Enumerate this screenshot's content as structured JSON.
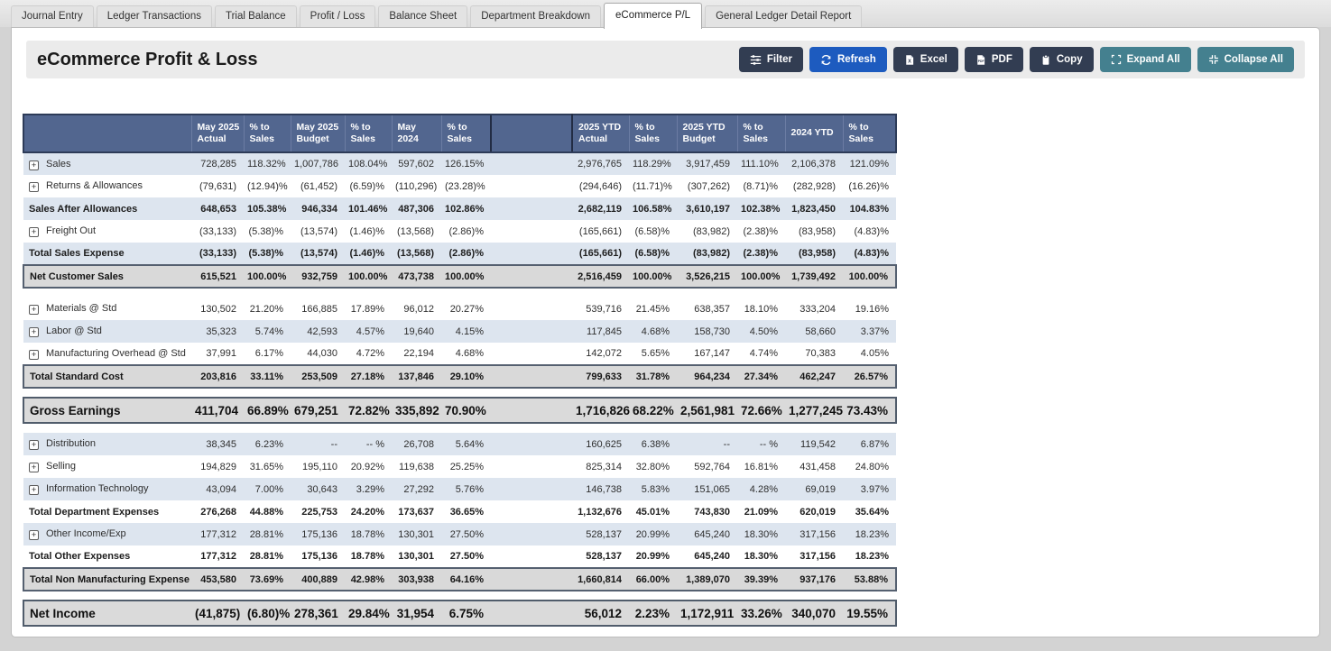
{
  "tabs": [
    {
      "label": "Journal Entry",
      "active": false
    },
    {
      "label": "Ledger Transactions",
      "active": false
    },
    {
      "label": "Trial Balance",
      "active": false
    },
    {
      "label": "Profit / Loss",
      "active": false
    },
    {
      "label": "Balance Sheet",
      "active": false
    },
    {
      "label": "Department Breakdown",
      "active": false
    },
    {
      "label": "eCommerce P/L",
      "active": true
    },
    {
      "label": "General Ledger Detail Report",
      "active": false
    }
  ],
  "header": {
    "title": "eCommerce Profit & Loss"
  },
  "toolbar": {
    "buttons": [
      {
        "label": "Filter",
        "icon": "filter-sliders-icon",
        "color": "#323d52"
      },
      {
        "label": "Refresh",
        "icon": "refresh-icon",
        "color": "#1d5bbf"
      },
      {
        "label": "Excel",
        "icon": "excel-file-icon",
        "color": "#323d52"
      },
      {
        "label": "PDF",
        "icon": "pdf-file-icon",
        "color": "#323d52"
      },
      {
        "label": "Copy",
        "icon": "copy-clipboard-icon",
        "color": "#323d52"
      },
      {
        "label": "Expand All",
        "icon": "expand-icon",
        "color": "#44808f"
      },
      {
        "label": "Collapse All",
        "icon": "collapse-icon",
        "color": "#44808f"
      }
    ]
  },
  "colors": {
    "table_header_bg": "#52668f",
    "stripe_blue": "#dde5ef",
    "total_row_bg": "#d9d9d9",
    "primary_button": "#1d5bbf",
    "dark_button": "#323d52",
    "teal_button": "#44808f"
  },
  "table": {
    "columns": [
      "",
      "May 2025 Actual",
      "% to Sales",
      "May 2025 Budget",
      "% to Sales",
      "May 2024",
      "% to Sales",
      "",
      "2025 YTD Actual",
      "% to Sales",
      "2025 YTD Budget",
      "% to Sales",
      "2024 YTD",
      "% to Sales"
    ],
    "rows": [
      {
        "label": "Sales",
        "icon": true,
        "stripe": "blue",
        "kind": "normal",
        "gap_before": false,
        "cells": [
          "728,285",
          "118.32%",
          "1,007,786",
          "108.04%",
          "597,602",
          "126.15%",
          "2,976,765",
          "118.29%",
          "3,917,459",
          "111.10%",
          "2,106,378",
          "121.09%"
        ]
      },
      {
        "label": "Returns & Allowances",
        "icon": true,
        "stripe": "white",
        "kind": "normal",
        "gap_before": false,
        "cells": [
          "(79,631)",
          "(12.94)%",
          "(61,452)",
          "(6.59)%",
          "(110,296)",
          "(23.28)%",
          "(294,646)",
          "(11.71)%",
          "(307,262)",
          "(8.71)%",
          "(282,928)",
          "(16.26)%"
        ]
      },
      {
        "label": "Sales After Allowances",
        "icon": false,
        "stripe": "blue",
        "kind": "bold",
        "gap_before": false,
        "cells": [
          "648,653",
          "105.38%",
          "946,334",
          "101.46%",
          "487,306",
          "102.86%",
          "2,682,119",
          "106.58%",
          "3,610,197",
          "102.38%",
          "1,823,450",
          "104.83%"
        ]
      },
      {
        "label": "Freight Out",
        "icon": true,
        "stripe": "white",
        "kind": "normal",
        "gap_before": false,
        "cells": [
          "(33,133)",
          "(5.38)%",
          "(13,574)",
          "(1.46)%",
          "(13,568)",
          "(2.86)%",
          "(165,661)",
          "(6.58)%",
          "(83,982)",
          "(2.38)%",
          "(83,958)",
          "(4.83)%"
        ]
      },
      {
        "label": "Total Sales Expense",
        "icon": false,
        "stripe": "blue",
        "kind": "bold",
        "gap_before": false,
        "cells": [
          "(33,133)",
          "(5.38)%",
          "(13,574)",
          "(1.46)%",
          "(13,568)",
          "(2.86)%",
          "(165,661)",
          "(6.58)%",
          "(83,982)",
          "(2.38)%",
          "(83,958)",
          "(4.83)%"
        ]
      },
      {
        "label": "Net Customer Sales",
        "icon": false,
        "stripe": "none",
        "kind": "total",
        "gap_before": false,
        "cells": [
          "615,521",
          "100.00%",
          "932,759",
          "100.00%",
          "473,738",
          "100.00%",
          "2,516,459",
          "100.00%",
          "3,526,215",
          "100.00%",
          "1,739,492",
          "100.00%"
        ]
      },
      {
        "label": "Materials @ Std",
        "icon": true,
        "stripe": "white",
        "kind": "normal",
        "gap_before": true,
        "cells": [
          "130,502",
          "21.20%",
          "166,885",
          "17.89%",
          "96,012",
          "20.27%",
          "539,716",
          "21.45%",
          "638,357",
          "18.10%",
          "333,204",
          "19.16%"
        ]
      },
      {
        "label": "Labor @ Std",
        "icon": true,
        "stripe": "blue",
        "kind": "normal",
        "gap_before": false,
        "cells": [
          "35,323",
          "5.74%",
          "42,593",
          "4.57%",
          "19,640",
          "4.15%",
          "117,845",
          "4.68%",
          "158,730",
          "4.50%",
          "58,660",
          "3.37%"
        ]
      },
      {
        "label": "Manufacturing Overhead @ Std",
        "icon": true,
        "stripe": "white",
        "kind": "normal",
        "gap_before": false,
        "cells": [
          "37,991",
          "6.17%",
          "44,030",
          "4.72%",
          "22,194",
          "4.68%",
          "142,072",
          "5.65%",
          "167,147",
          "4.74%",
          "70,383",
          "4.05%"
        ]
      },
      {
        "label": "Total Standard Cost",
        "icon": false,
        "stripe": "none",
        "kind": "total",
        "gap_before": false,
        "cells": [
          "203,816",
          "33.11%",
          "253,509",
          "27.18%",
          "137,846",
          "29.10%",
          "799,633",
          "31.78%",
          "964,234",
          "27.34%",
          "462,247",
          "26.57%"
        ]
      },
      {
        "label": "Gross Earnings",
        "icon": false,
        "stripe": "none",
        "kind": "grand",
        "gap_before": true,
        "cells": [
          "411,704",
          "66.89%",
          "679,251",
          "72.82%",
          "335,892",
          "70.90%",
          "1,716,826",
          "68.22%",
          "2,561,981",
          "72.66%",
          "1,277,245",
          "73.43%"
        ]
      },
      {
        "label": "Distribution",
        "icon": true,
        "stripe": "blue",
        "kind": "normal",
        "gap_before": true,
        "cells": [
          "38,345",
          "6.23%",
          "--",
          "-- %",
          "26,708",
          "5.64%",
          "160,625",
          "6.38%",
          "--",
          "-- %",
          "119,542",
          "6.87%"
        ]
      },
      {
        "label": "Selling",
        "icon": true,
        "stripe": "white",
        "kind": "normal",
        "gap_before": false,
        "cells": [
          "194,829",
          "31.65%",
          "195,110",
          "20.92%",
          "119,638",
          "25.25%",
          "825,314",
          "32.80%",
          "592,764",
          "16.81%",
          "431,458",
          "24.80%"
        ]
      },
      {
        "label": "Information Technology",
        "icon": true,
        "stripe": "blue",
        "kind": "normal",
        "gap_before": false,
        "cells": [
          "43,094",
          "7.00%",
          "30,643",
          "3.29%",
          "27,292",
          "5.76%",
          "146,738",
          "5.83%",
          "151,065",
          "4.28%",
          "69,019",
          "3.97%"
        ]
      },
      {
        "label": "Total Department Expenses",
        "icon": false,
        "stripe": "white",
        "kind": "bold",
        "gap_before": false,
        "cells": [
          "276,268",
          "44.88%",
          "225,753",
          "24.20%",
          "173,637",
          "36.65%",
          "1,132,676",
          "45.01%",
          "743,830",
          "21.09%",
          "620,019",
          "35.64%"
        ]
      },
      {
        "label": "Other Income/Exp",
        "icon": true,
        "stripe": "blue",
        "kind": "normal",
        "gap_before": false,
        "cells": [
          "177,312",
          "28.81%",
          "175,136",
          "18.78%",
          "130,301",
          "27.50%",
          "528,137",
          "20.99%",
          "645,240",
          "18.30%",
          "317,156",
          "18.23%"
        ]
      },
      {
        "label": "Total Other Expenses",
        "icon": false,
        "stripe": "white",
        "kind": "bold",
        "gap_before": false,
        "cells": [
          "177,312",
          "28.81%",
          "175,136",
          "18.78%",
          "130,301",
          "27.50%",
          "528,137",
          "20.99%",
          "645,240",
          "18.30%",
          "317,156",
          "18.23%"
        ]
      },
      {
        "label": "Total Non Manufacturing Expense",
        "icon": false,
        "stripe": "none",
        "kind": "total",
        "gap_before": false,
        "cells": [
          "453,580",
          "73.69%",
          "400,889",
          "42.98%",
          "303,938",
          "64.16%",
          "1,660,814",
          "66.00%",
          "1,389,070",
          "39.39%",
          "937,176",
          "53.88%"
        ]
      },
      {
        "label": "Net Income",
        "icon": false,
        "stripe": "none",
        "kind": "grand",
        "gap_before": true,
        "cells": [
          "(41,875)",
          "(6.80)%",
          "278,361",
          "29.84%",
          "31,954",
          "6.75%",
          "56,012",
          "2.23%",
          "1,172,911",
          "33.26%",
          "340,070",
          "19.55%"
        ]
      }
    ]
  }
}
